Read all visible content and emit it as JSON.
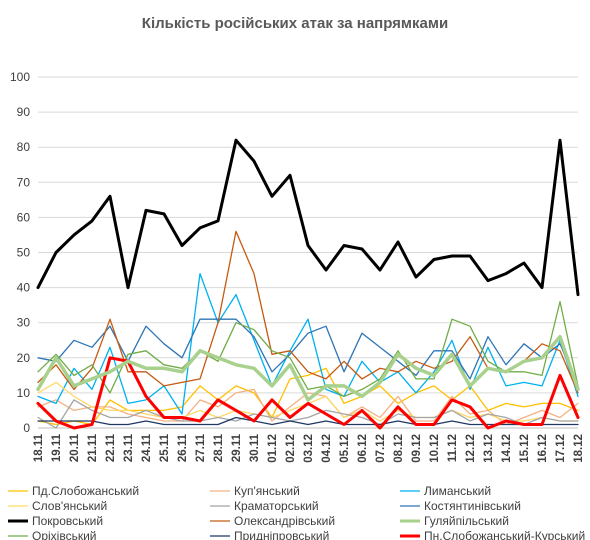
{
  "chart_data": {
    "type": "line",
    "title": "Кількість російських атак за напрямками",
    "xlabel": "",
    "ylabel": "",
    "ylim": [
      0,
      100
    ],
    "yticks": [
      0,
      10,
      20,
      30,
      40,
      50,
      60,
      70,
      80,
      90,
      100
    ],
    "grid": true,
    "legend_position": "bottom",
    "categories": [
      "18.11",
      "19.11",
      "20.11",
      "21.11",
      "22.11",
      "23.11",
      "24.11",
      "25.11",
      "26.11",
      "27.11",
      "28.11",
      "29.11",
      "30.11",
      "01.12",
      "02.12",
      "03.12",
      "04.12",
      "05.12",
      "06.12",
      "07.12",
      "08.12",
      "09.12",
      "10.12",
      "11.12",
      "12.12",
      "13.12",
      "14.12",
      "15.12",
      "16.12",
      "17.12",
      "18.12"
    ],
    "series": [
      {
        "name": "Пд.Слобожанський",
        "color": "#ffc000",
        "width": 1.3,
        "values": [
          2,
          1,
          2,
          1,
          8,
          5,
          5,
          5,
          6,
          12,
          8,
          12,
          10,
          3,
          14,
          15,
          17,
          7,
          9,
          12,
          7,
          10,
          12,
          8,
          12,
          5,
          7,
          6,
          7,
          7,
          5
        ]
      },
      {
        "name": "Куп'янський",
        "color": "#f4b183",
        "width": 1.3,
        "values": [
          6,
          8,
          5,
          6,
          6,
          4,
          3,
          2,
          2,
          8,
          6,
          10,
          11,
          2,
          6,
          10,
          9,
          3,
          6,
          3,
          9,
          2,
          2,
          9,
          4,
          5,
          1,
          3,
          5,
          3,
          7
        ]
      },
      {
        "name": "Лиманський",
        "color": "#00b0f0",
        "width": 1.3,
        "values": [
          9,
          7,
          17,
          11,
          23,
          7,
          8,
          12,
          4,
          44,
          30,
          38,
          25,
          12,
          22,
          31,
          11,
          9,
          19,
          13,
          16,
          10,
          16,
          25,
          11,
          23,
          12,
          13,
          12,
          25,
          9
        ]
      },
      {
        "name": "Слов'янський",
        "color": "#ffd966",
        "width": 1.3,
        "values": [
          10,
          13,
          9,
          6,
          5,
          5,
          4,
          3,
          3,
          5,
          3,
          5,
          4,
          3,
          5,
          7,
          9,
          3,
          5,
          2,
          5,
          3,
          3,
          5,
          3,
          4,
          2,
          2,
          3,
          2,
          2
        ]
      },
      {
        "name": "Краматорський",
        "color": "#a5a5a5",
        "width": 1.3,
        "values": [
          3,
          0,
          8,
          5,
          3,
          3,
          5,
          3,
          2,
          2,
          3,
          2,
          4,
          3,
          2,
          3,
          5,
          4,
          3,
          1,
          4,
          3,
          3,
          5,
          2,
          4,
          3,
          1,
          3,
          2,
          2
        ]
      },
      {
        "name": "Костянтинівський",
        "color": "#2e75b6",
        "width": 1.3,
        "values": [
          20,
          19,
          25,
          23,
          29,
          19,
          29,
          24,
          20,
          31,
          31,
          31,
          26,
          16,
          21,
          27,
          29,
          16,
          27,
          23,
          19,
          15,
          22,
          22,
          14,
          26,
          18,
          24,
          20,
          24,
          12
        ]
      },
      {
        "name": "Покровський",
        "color": "#000000",
        "width": 3,
        "values": [
          40,
          50,
          55,
          59,
          66,
          40,
          62,
          61,
          52,
          57,
          59,
          82,
          76,
          66,
          72,
          52,
          45,
          52,
          51,
          45,
          53,
          43,
          48,
          49,
          49,
          42,
          44,
          47,
          40,
          82,
          38
        ]
      },
      {
        "name": "Олександрівський",
        "color": "#c55a11",
        "width": 1.3,
        "values": [
          13,
          18,
          11,
          17,
          31,
          16,
          16,
          12,
          13,
          14,
          30,
          56,
          44,
          21,
          22,
          16,
          14,
          19,
          14,
          17,
          16,
          19,
          17,
          19,
          26,
          17,
          16,
          19,
          24,
          22,
          10
        ]
      },
      {
        "name": "Гуляйпільський",
        "color": "#a9d18e",
        "width": 3.5,
        "values": [
          11,
          20,
          12,
          14,
          16,
          19,
          17,
          17,
          16,
          22,
          20,
          18,
          17,
          12,
          18,
          8,
          12,
          12,
          9,
          13,
          21,
          17,
          15,
          21,
          12,
          17,
          16,
          19,
          20,
          26,
          11
        ]
      },
      {
        "name": "Оріхівський",
        "color": "#70ad47",
        "width": 1.3,
        "values": [
          16,
          21,
          15,
          18,
          10,
          21,
          22,
          18,
          17,
          22,
          19,
          30,
          28,
          22,
          20,
          11,
          12,
          9,
          11,
          14,
          22,
          14,
          14,
          31,
          29,
          19,
          16,
          16,
          15,
          36,
          12
        ]
      },
      {
        "name": "Придніпровський",
        "color": "#1f3864",
        "width": 1.3,
        "values": [
          2,
          2,
          2,
          2,
          1,
          1,
          2,
          1,
          1,
          1,
          1,
          3,
          2,
          1,
          2,
          1,
          2,
          1,
          1,
          1,
          2,
          1,
          1,
          2,
          1,
          1,
          1,
          1,
          1,
          1,
          1
        ]
      },
      {
        "name": "Пн.Слобожанський-Курський",
        "color": "#ff0000",
        "width": 3,
        "values": [
          7,
          2,
          0,
          1,
          20,
          19,
          9,
          3,
          3,
          2,
          8,
          5,
          2,
          8,
          3,
          7,
          4,
          1,
          5,
          0,
          6,
          1,
          1,
          8,
          6,
          0,
          2,
          1,
          1,
          15,
          3
        ]
      }
    ]
  }
}
